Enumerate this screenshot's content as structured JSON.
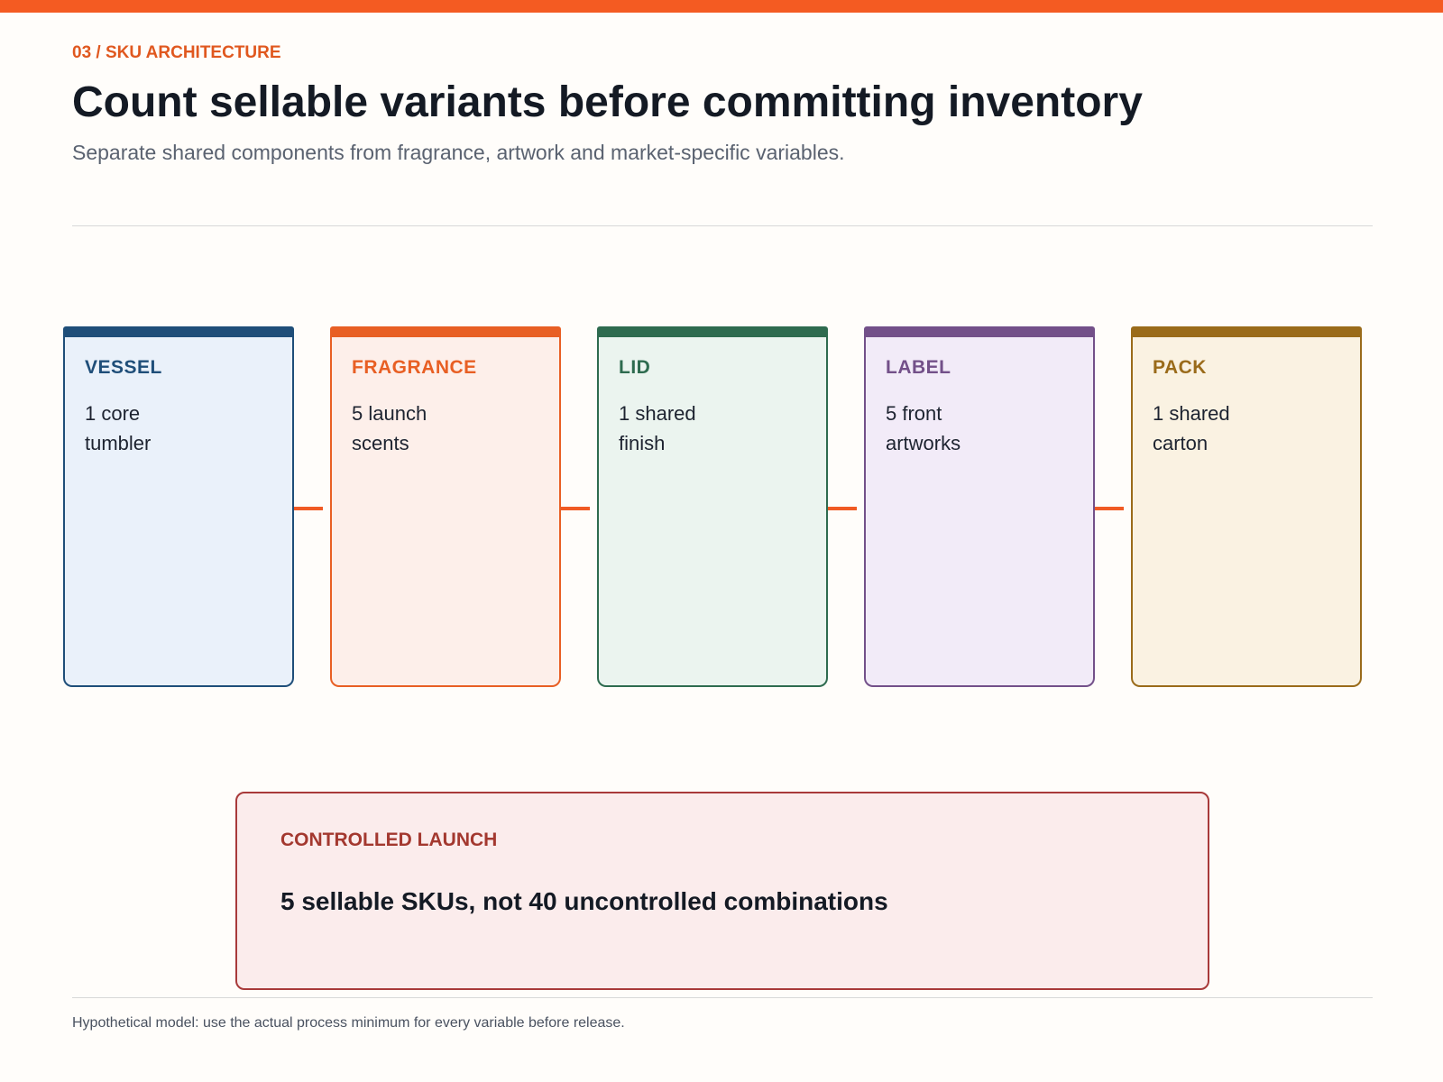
{
  "header": {
    "kicker": "03 / SKU ARCHITECTURE",
    "title": "Count sellable variants before committing inventory",
    "subtitle": "Separate shared components from fragrance, artwork and market-specific variables."
  },
  "nodes": [
    {
      "label": "VESSEL",
      "text": [
        "1 core",
        "tumbler"
      ]
    },
    {
      "label": "FRAGRANCE",
      "text": [
        "5 launch",
        "scents"
      ]
    },
    {
      "label": "LID",
      "text": [
        "1 shared",
        "finish"
      ]
    },
    {
      "label": "LABEL",
      "text": [
        "5 front",
        "artworks"
      ]
    },
    {
      "label": "PACK",
      "text": [
        "1 shared",
        "carton"
      ]
    }
  ],
  "summary": {
    "label": "CONTROLLED LAUNCH",
    "text": "5 sellable SKUs, not 40 uncontrolled combinations"
  },
  "footnote": "Hypothetical model: use the actual process minimum for every variable before release."
}
